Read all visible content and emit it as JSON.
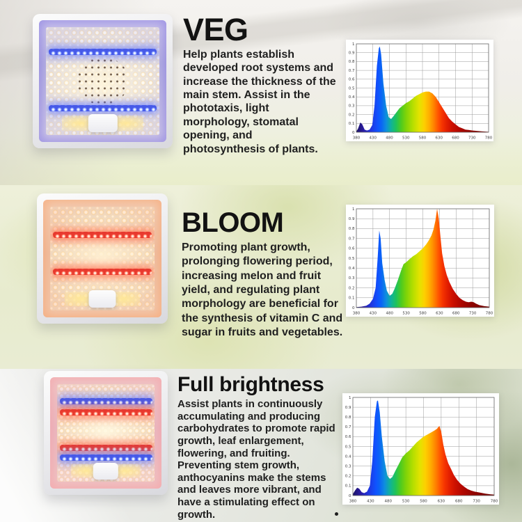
{
  "sections": [
    {
      "heading": "VEG",
      "body": "Help plants establish developed root systems and increase the thickness of the main stem. Assist in the phototaxis, light morphology, stomatal opening, and photosynthesis of plants.",
      "panel": {
        "description": "grow light panel photo, warm white LEDs with two blue LED strips",
        "strip_colors": [
          "#4659e8",
          "#4659e8"
        ]
      }
    },
    {
      "heading": "BLOOM",
      "body": "Promoting plant growth, prolonging flowering period, increasing melon and fruit yield, and regulating plant morphology are beneficial for the synthesis of vitamin C and sugar in fruits and vegetables.",
      "panel": {
        "description": "grow light panel photo, warm white LEDs with two red LED strips",
        "strip_colors": [
          "#e8392e",
          "#e8392e"
        ]
      }
    },
    {
      "heading": "Full brightness",
      "body": "Assist plants in continuously accumulating and producing carbohydrates to promote rapid growth, leaf enlargement, flowering, and fruiting. Preventing stem growth, anthocyanins make the stems and leaves more vibrant, and have a stimulating effect on growth.",
      "panel": {
        "description": "grow light panel photo, warm white LEDs with blue and red LED strips",
        "strip_colors": [
          "#4659e8",
          "#e8392e",
          "#e8392e",
          "#4659e8"
        ]
      }
    }
  ],
  "colors": {
    "heading_text": "#121212",
    "body_text": "#1f1f1f",
    "chart_grid": "#9a9a9a",
    "chart_border": "#6f6f6f",
    "spectrum_stops": [
      {
        "at": 380,
        "color": "#1b1464"
      },
      {
        "at": 400,
        "color": "#2a1a9e"
      },
      {
        "at": 425,
        "color": "#2036e0"
      },
      {
        "at": 445,
        "color": "#0f52ff"
      },
      {
        "at": 455,
        "color": "#0a64f5"
      },
      {
        "at": 470,
        "color": "#0e8ede"
      },
      {
        "at": 485,
        "color": "#10b29a"
      },
      {
        "at": 500,
        "color": "#1fc25c"
      },
      {
        "at": 515,
        "color": "#4ecb1f"
      },
      {
        "at": 530,
        "color": "#7ed308"
      },
      {
        "at": 550,
        "color": "#b4de00"
      },
      {
        "at": 570,
        "color": "#e3e300"
      },
      {
        "at": 585,
        "color": "#fdd000"
      },
      {
        "at": 600,
        "color": "#ffae00"
      },
      {
        "at": 615,
        "color": "#ff8000"
      },
      {
        "at": 628,
        "color": "#ff5200"
      },
      {
        "at": 640,
        "color": "#f53300"
      },
      {
        "at": 655,
        "color": "#e11d00"
      },
      {
        "at": 670,
        "color": "#cc1000"
      },
      {
        "at": 690,
        "color": "#b30800"
      },
      {
        "at": 720,
        "color": "#930400"
      },
      {
        "at": 780,
        "color": "#6e0200"
      }
    ]
  },
  "chart_data": [
    {
      "type": "area",
      "mode": "VEG",
      "xlabel": "",
      "ylabel": "",
      "xlim": [
        380,
        780
      ],
      "ylim": [
        0,
        1
      ],
      "x_ticks": [
        380,
        430,
        480,
        530,
        580,
        630,
        680,
        730,
        780
      ],
      "y_ticks": [
        0,
        0.1,
        0.2,
        0.3,
        0.4,
        0.5,
        0.6,
        0.7,
        0.8,
        0.9,
        1
      ],
      "grid": true,
      "points": [
        [
          380,
          0.01
        ],
        [
          385,
          0.04
        ],
        [
          392,
          0.11
        ],
        [
          398,
          0.09
        ],
        [
          405,
          0.03
        ],
        [
          412,
          0.02
        ],
        [
          420,
          0.03
        ],
        [
          428,
          0.08
        ],
        [
          435,
          0.3
        ],
        [
          442,
          0.75
        ],
        [
          448,
          0.95
        ],
        [
          451,
          0.97
        ],
        [
          455,
          0.88
        ],
        [
          462,
          0.55
        ],
        [
          470,
          0.3
        ],
        [
          478,
          0.17
        ],
        [
          485,
          0.15
        ],
        [
          492,
          0.18
        ],
        [
          500,
          0.22
        ],
        [
          510,
          0.27
        ],
        [
          520,
          0.3
        ],
        [
          530,
          0.33
        ],
        [
          540,
          0.35
        ],
        [
          550,
          0.38
        ],
        [
          560,
          0.41
        ],
        [
          570,
          0.43
        ],
        [
          580,
          0.45
        ],
        [
          590,
          0.46
        ],
        [
          600,
          0.46
        ],
        [
          610,
          0.44
        ],
        [
          620,
          0.4
        ],
        [
          630,
          0.34
        ],
        [
          640,
          0.28
        ],
        [
          650,
          0.22
        ],
        [
          660,
          0.16
        ],
        [
          670,
          0.12
        ],
        [
          680,
          0.09
        ],
        [
          690,
          0.06
        ],
        [
          700,
          0.045
        ],
        [
          710,
          0.03
        ],
        [
          720,
          0.025
        ],
        [
          730,
          0.02
        ],
        [
          745,
          0.015
        ],
        [
          760,
          0.01
        ],
        [
          780,
          0.005
        ]
      ]
    },
    {
      "type": "area",
      "mode": "BLOOM",
      "xlabel": "",
      "ylabel": "",
      "xlim": [
        380,
        780
      ],
      "ylim": [
        0,
        1
      ],
      "x_ticks": [
        380,
        430,
        480,
        530,
        580,
        630,
        680,
        730,
        780
      ],
      "y_ticks": [
        0,
        0.1,
        0.2,
        0.3,
        0.4,
        0.5,
        0.6,
        0.7,
        0.8,
        0.9,
        1
      ],
      "grid": true,
      "points": [
        [
          380,
          0.005
        ],
        [
          395,
          0.01
        ],
        [
          410,
          0.02
        ],
        [
          420,
          0.04
        ],
        [
          430,
          0.09
        ],
        [
          438,
          0.2
        ],
        [
          444,
          0.5
        ],
        [
          449,
          0.78
        ],
        [
          453,
          0.7
        ],
        [
          458,
          0.45
        ],
        [
          465,
          0.28
        ],
        [
          472,
          0.17
        ],
        [
          480,
          0.12
        ],
        [
          488,
          0.14
        ],
        [
          495,
          0.19
        ],
        [
          505,
          0.28
        ],
        [
          515,
          0.38
        ],
        [
          522,
          0.44
        ],
        [
          530,
          0.46
        ],
        [
          540,
          0.49
        ],
        [
          550,
          0.52
        ],
        [
          560,
          0.54
        ],
        [
          570,
          0.57
        ],
        [
          580,
          0.6
        ],
        [
          590,
          0.64
        ],
        [
          598,
          0.68
        ],
        [
          606,
          0.73
        ],
        [
          612,
          0.79
        ],
        [
          618,
          0.88
        ],
        [
          623,
          1.0
        ],
        [
          628,
          0.9
        ],
        [
          633,
          0.72
        ],
        [
          638,
          0.55
        ],
        [
          645,
          0.42
        ],
        [
          652,
          0.33
        ],
        [
          660,
          0.26
        ],
        [
          670,
          0.19
        ],
        [
          680,
          0.14
        ],
        [
          690,
          0.1
        ],
        [
          700,
          0.075
        ],
        [
          710,
          0.06
        ],
        [
          718,
          0.055
        ],
        [
          726,
          0.06
        ],
        [
          733,
          0.055
        ],
        [
          740,
          0.04
        ],
        [
          750,
          0.025
        ],
        [
          765,
          0.015
        ],
        [
          780,
          0.01
        ]
      ]
    },
    {
      "type": "area",
      "mode": "Full brightness",
      "xlabel": "",
      "ylabel": "",
      "xlim": [
        380,
        780
      ],
      "ylim": [
        0,
        1
      ],
      "x_ticks": [
        380,
        430,
        480,
        530,
        580,
        630,
        680,
        730,
        780
      ],
      "y_ticks": [
        0,
        0.1,
        0.2,
        0.3,
        0.4,
        0.5,
        0.6,
        0.7,
        0.8,
        0.9,
        1
      ],
      "grid": true,
      "points": [
        [
          380,
          0.015
        ],
        [
          386,
          0.05
        ],
        [
          392,
          0.08
        ],
        [
          398,
          0.07
        ],
        [
          405,
          0.035
        ],
        [
          412,
          0.025
        ],
        [
          420,
          0.04
        ],
        [
          428,
          0.1
        ],
        [
          435,
          0.35
        ],
        [
          442,
          0.8
        ],
        [
          448,
          0.96
        ],
        [
          451,
          0.97
        ],
        [
          456,
          0.85
        ],
        [
          462,
          0.6
        ],
        [
          470,
          0.35
        ],
        [
          478,
          0.2
        ],
        [
          485,
          0.17
        ],
        [
          492,
          0.19
        ],
        [
          500,
          0.25
        ],
        [
          510,
          0.32
        ],
        [
          520,
          0.39
        ],
        [
          530,
          0.43
        ],
        [
          540,
          0.46
        ],
        [
          550,
          0.5
        ],
        [
          560,
          0.54
        ],
        [
          570,
          0.57
        ],
        [
          580,
          0.6
        ],
        [
          590,
          0.62
        ],
        [
          600,
          0.64
        ],
        [
          610,
          0.66
        ],
        [
          618,
          0.68
        ],
        [
          625,
          0.71
        ],
        [
          630,
          0.65
        ],
        [
          636,
          0.52
        ],
        [
          642,
          0.42
        ],
        [
          650,
          0.33
        ],
        [
          658,
          0.27
        ],
        [
          666,
          0.21
        ],
        [
          675,
          0.16
        ],
        [
          685,
          0.12
        ],
        [
          695,
          0.09
        ],
        [
          705,
          0.065
        ],
        [
          715,
          0.05
        ],
        [
          725,
          0.04
        ],
        [
          740,
          0.03
        ],
        [
          755,
          0.02
        ],
        [
          770,
          0.012
        ],
        [
          780,
          0.01
        ]
      ]
    }
  ]
}
